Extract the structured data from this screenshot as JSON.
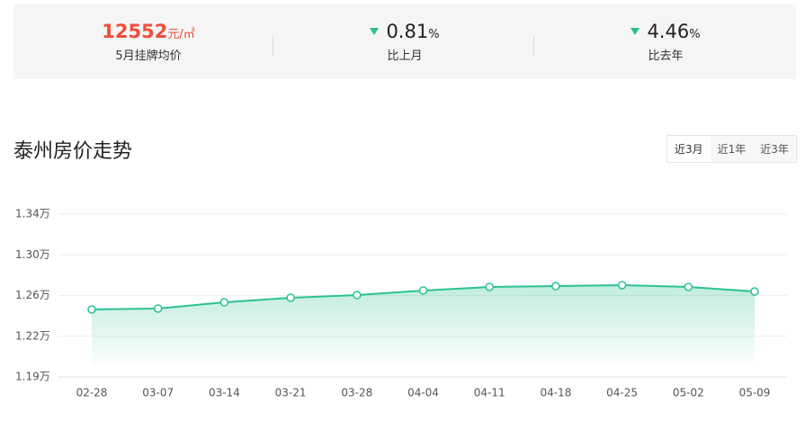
{
  "stats": [
    {
      "value": 12552,
      "unit": "元/㎡",
      "label": "5月挂牌均价"
    },
    {
      "value": 0.81,
      "unit": "%",
      "label": "比上月"
    },
    {
      "value": 4.46,
      "unit": "%",
      "label": "比去年"
    }
  ],
  "tabs": [
    "近3月",
    "近1年",
    "近3年"
  ],
  "chart_data": {
    "type": "area",
    "title": "泰州房价走势",
    "color": "#2cc38c",
    "grid": true,
    "categories": [
      "02-28",
      "03-07",
      "03-14",
      "03-21",
      "03-28",
      "04-04",
      "04-11",
      "04-18",
      "04-25",
      "05-02",
      "05-09"
    ],
    "values": [
      1.2492,
      1.2501,
      1.256,
      1.2603,
      1.2628,
      1.2671,
      1.2705,
      1.2713,
      1.2722,
      1.2705,
      1.2662
    ],
    "ylim": [
      1.1854,
      1.3394
    ],
    "yticks": [
      {
        "value": 1.1854,
        "label": "1.19万"
      },
      {
        "value": 1.2239,
        "label": "1.22万"
      },
      {
        "value": 1.2624,
        "label": "1.26万"
      },
      {
        "value": 1.3009,
        "label": "1.30万"
      },
      {
        "value": 1.3394,
        "label": "1.34万"
      }
    ]
  }
}
